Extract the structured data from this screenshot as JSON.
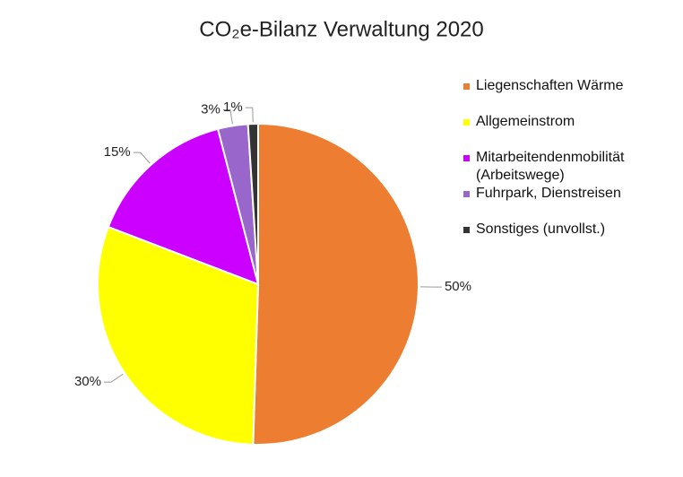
{
  "chart_data": {
    "type": "pie",
    "title": "CO₂e-Bilanz Verwaltung 2020",
    "categories": [
      "Liegenschaften Wärme",
      "Allgemeinstrom",
      "Mitarbeitendenmobilität (Arbeitswege)",
      "Fuhrpark, Dienstreisen",
      "Sonstiges (unvollst.)"
    ],
    "values": [
      50,
      30,
      15,
      3,
      1
    ],
    "value_labels": [
      "50%",
      "30%",
      "15%",
      "3%",
      "1%"
    ],
    "colors": [
      "#ed7d31",
      "#ffff00",
      "#cc00ff",
      "#9966cc",
      "#333333"
    ],
    "legend": "right"
  }
}
